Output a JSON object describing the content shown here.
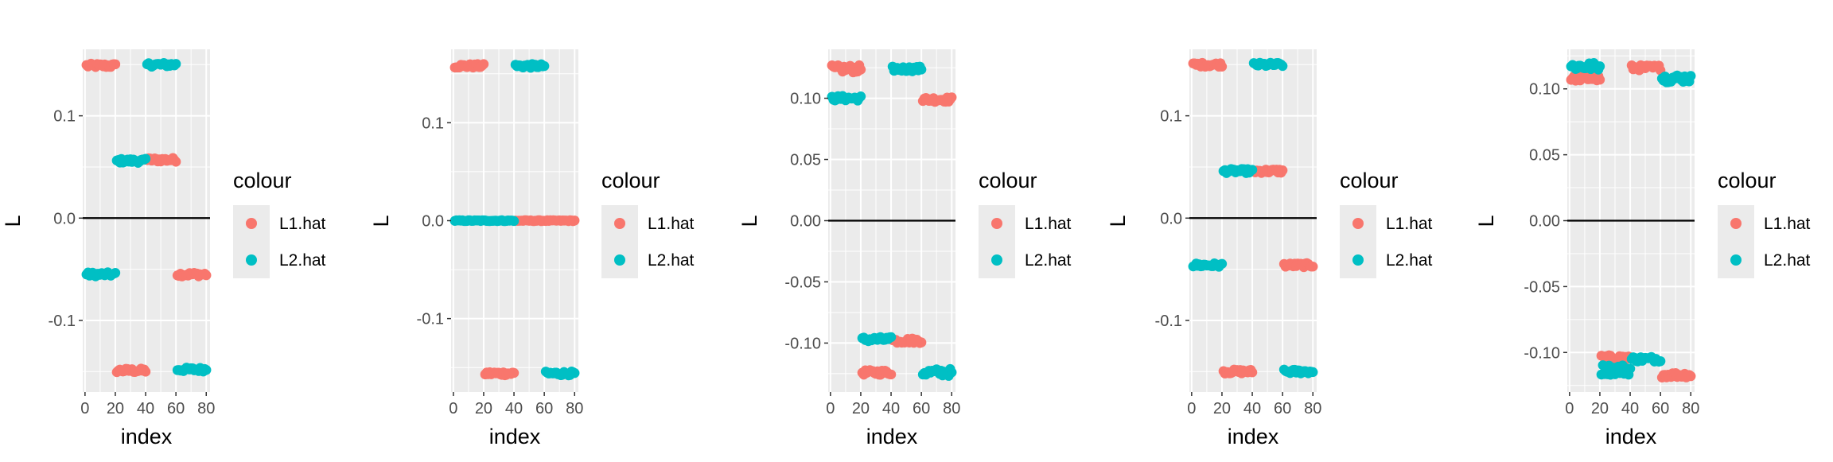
{
  "colors": {
    "L1.hat": "#F8766D",
    "L2.hat": "#00BFC4",
    "panel": "#EBEBEB",
    "grid": "#FFFFFF",
    "zero_line": "#000000",
    "text": "#4D4D4D"
  },
  "legend": {
    "title": "colour",
    "labels": [
      "L1.hat",
      "L2.hat"
    ]
  },
  "chart_data": [
    {
      "type": "scatter",
      "xlabel": "index",
      "ylabel": "L",
      "xlim": [
        -1.5,
        82.5
      ],
      "ylim": [
        -0.17,
        0.165
      ],
      "xticks": [
        0,
        20,
        40,
        60,
        80
      ],
      "yticks": [
        0.1,
        0.0,
        -0.1
      ],
      "ytick_labels": [
        "0.1",
        "0.0",
        "-0.1"
      ],
      "hline": 0,
      "series": [
        {
          "name": "L1.hat",
          "segments": [
            {
              "x": [
                1,
                20
              ],
              "y": 0.149,
              "jitter": 0.002
            },
            {
              "x": [
                21,
                40
              ],
              "y": -0.149,
              "jitter": 0.002
            },
            {
              "x": [
                41,
                60
              ],
              "y": 0.057,
              "jitter": 0.002
            },
            {
              "x": [
                61,
                80
              ],
              "y": -0.055,
              "jitter": 0.002
            }
          ]
        },
        {
          "name": "L2.hat",
          "segments": [
            {
              "x": [
                1,
                20
              ],
              "y": -0.055,
              "jitter": 0.002
            },
            {
              "x": [
                21,
                40
              ],
              "y": 0.056,
              "jitter": 0.002
            },
            {
              "x": [
                41,
                60
              ],
              "y": 0.15,
              "jitter": 0.002
            },
            {
              "x": [
                61,
                80
              ],
              "y": -0.148,
              "jitter": 0.002
            }
          ]
        }
      ]
    },
    {
      "type": "scatter",
      "xlabel": "index",
      "ylabel": "L",
      "xlim": [
        -1.5,
        82.5
      ],
      "ylim": [
        -0.175,
        0.175
      ],
      "xticks": [
        0,
        20,
        40,
        60,
        80
      ],
      "yticks": [
        0.1,
        0.0,
        -0.1
      ],
      "ytick_labels": [
        "0.1",
        "0.0",
        "-0.1"
      ],
      "hline": 0,
      "series": [
        {
          "name": "L1.hat",
          "segments": [
            {
              "x": [
                1,
                20
              ],
              "y": 0.158,
              "jitter": 0.002
            },
            {
              "x": [
                21,
                40
              ],
              "y": -0.156,
              "jitter": 0.002
            },
            {
              "x": [
                41,
                80
              ],
              "y": 0.0,
              "jitter": 0.0005
            }
          ]
        },
        {
          "name": "L2.hat",
          "segments": [
            {
              "x": [
                1,
                40
              ],
              "y": 0.0,
              "jitter": 0.0005
            },
            {
              "x": [
                41,
                60
              ],
              "y": 0.158,
              "jitter": 0.002
            },
            {
              "x": [
                61,
                80
              ],
              "y": -0.156,
              "jitter": 0.002
            }
          ]
        }
      ]
    },
    {
      "type": "scatter",
      "xlabel": "index",
      "ylabel": "L",
      "xlim": [
        -1.5,
        82.5
      ],
      "ylim": [
        -0.14,
        0.14
      ],
      "xticks": [
        0,
        20,
        40,
        60,
        80
      ],
      "yticks": [
        0.1,
        0.05,
        0.0,
        -0.05,
        -0.1
      ],
      "ytick_labels": [
        "0.10",
        "0.05",
        "0.00",
        "-0.05",
        "-0.10"
      ],
      "hline": 0,
      "series": [
        {
          "name": "L1.hat",
          "segments": [
            {
              "x": [
                1,
                20
              ],
              "y": 0.124,
              "jitter": 0.003
            },
            {
              "x": [
                21,
                40
              ],
              "y": -0.124,
              "jitter": 0.002
            },
            {
              "x": [
                41,
                60
              ],
              "y": -0.098,
              "jitter": 0.002
            },
            {
              "x": [
                61,
                80
              ],
              "y": 0.099,
              "jitter": 0.002
            }
          ]
        },
        {
          "name": "L2.hat",
          "segments": [
            {
              "x": [
                1,
                20
              ],
              "y": 0.1,
              "jitter": 0.002
            },
            {
              "x": [
                21,
                40
              ],
              "y": -0.097,
              "jitter": 0.002
            },
            {
              "x": [
                41,
                60
              ],
              "y": 0.124,
              "jitter": 0.002
            },
            {
              "x": [
                61,
                80
              ],
              "y": -0.124,
              "jitter": 0.003
            }
          ]
        }
      ]
    },
    {
      "type": "scatter",
      "xlabel": "index",
      "ylabel": "L",
      "xlim": [
        -1.5,
        82.5
      ],
      "ylim": [
        -0.17,
        0.165
      ],
      "xticks": [
        0,
        20,
        40,
        60,
        80
      ],
      "yticks": [
        0.1,
        0.0,
        -0.1
      ],
      "ytick_labels": [
        "0.1",
        "0.0",
        "-0.1"
      ],
      "hline": 0,
      "series": [
        {
          "name": "L1.hat",
          "segments": [
            {
              "x": [
                1,
                20
              ],
              "y": 0.15,
              "jitter": 0.002
            },
            {
              "x": [
                21,
                40
              ],
              "y": -0.15,
              "jitter": 0.002
            },
            {
              "x": [
                41,
                60
              ],
              "y": 0.046,
              "jitter": 0.002
            },
            {
              "x": [
                61,
                80
              ],
              "y": -0.046,
              "jitter": 0.002
            }
          ]
        },
        {
          "name": "L2.hat",
          "segments": [
            {
              "x": [
                1,
                20
              ],
              "y": -0.046,
              "jitter": 0.002
            },
            {
              "x": [
                21,
                40
              ],
              "y": 0.046,
              "jitter": 0.002
            },
            {
              "x": [
                41,
                60
              ],
              "y": 0.15,
              "jitter": 0.002
            },
            {
              "x": [
                61,
                80
              ],
              "y": -0.15,
              "jitter": 0.002
            }
          ]
        }
      ]
    },
    {
      "type": "scatter",
      "xlabel": "index",
      "ylabel": "L",
      "xlim": [
        -1.5,
        82.5
      ],
      "ylim": [
        -0.13,
        0.13
      ],
      "xticks": [
        0,
        20,
        40,
        60,
        80
      ],
      "yticks": [
        0.1,
        0.05,
        0.0,
        -0.05,
        -0.1
      ],
      "ytick_labels": [
        "0.10",
        "0.05",
        "0.00",
        "-0.05",
        "-0.10"
      ],
      "hline": 0,
      "series": [
        {
          "name": "L1.hat",
          "segments": [
            {
              "x": [
                1,
                20
              ],
              "y": 0.108,
              "jitter": 0.002
            },
            {
              "x": [
                21,
                40
              ],
              "y": -0.104,
              "jitter": 0.002
            },
            {
              "x": [
                41,
                60
              ],
              "y": 0.116,
              "jitter": 0.002
            },
            {
              "x": [
                61,
                80
              ],
              "y": -0.117,
              "jitter": 0.002
            }
          ]
        },
        {
          "name": "L2.hat",
          "segments": [
            {
              "x": [
                1,
                20
              ],
              "y": 0.117,
              "jitter": 0.003
            },
            {
              "x": [
                21,
                40
              ],
              "y": -0.113,
              "jitter": 0.004
            },
            {
              "x": [
                41,
                60
              ],
              "y": -0.105,
              "jitter": 0.002
            },
            {
              "x": [
                61,
                80
              ],
              "y": 0.108,
              "jitter": 0.003
            }
          ]
        }
      ]
    }
  ]
}
